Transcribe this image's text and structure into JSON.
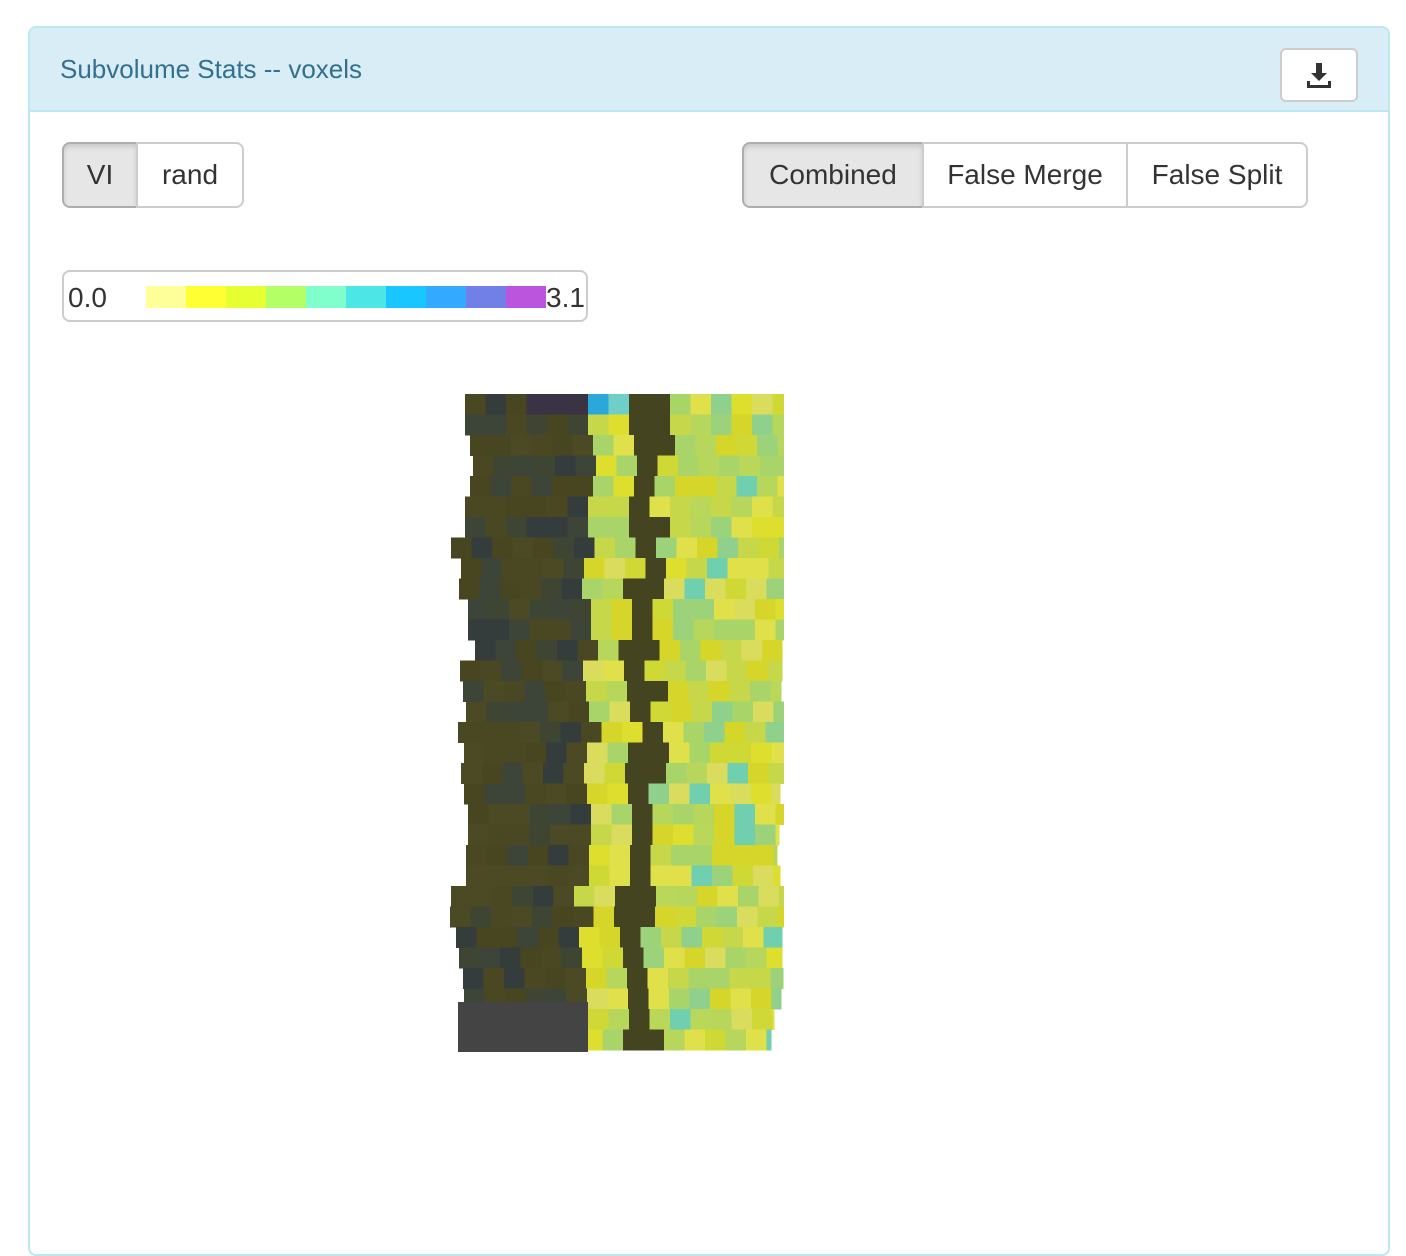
{
  "panel": {
    "title": "Subvolume Stats -- voxels",
    "download_icon": "download-icon"
  },
  "metric_toggle": {
    "options": [
      {
        "label": "VI",
        "active": true
      },
      {
        "label": "rand",
        "active": false
      }
    ]
  },
  "mode_toggle": {
    "options": [
      {
        "label": "Combined",
        "active": true
      },
      {
        "label": "False Merge",
        "active": false
      },
      {
        "label": "False Split",
        "active": false
      }
    ]
  },
  "legend": {
    "min": "0.0",
    "max": "3.1",
    "colors": [
      "#ffff99",
      "#ffff33",
      "#e5ff33",
      "#b2ff66",
      "#80ffcc",
      "#4de6e6",
      "#1ac6ff",
      "#33aaff",
      "#7080e6",
      "#bb55dd"
    ]
  },
  "chart_data": {
    "type": "heatmap",
    "description_colors": {
      "dark_background": "#4a4822",
      "dark_blue": "#343d3b",
      "yellow": "#d6d62a",
      "light_green": "#a8d468",
      "teal": "#6fcfae"
    }
  }
}
